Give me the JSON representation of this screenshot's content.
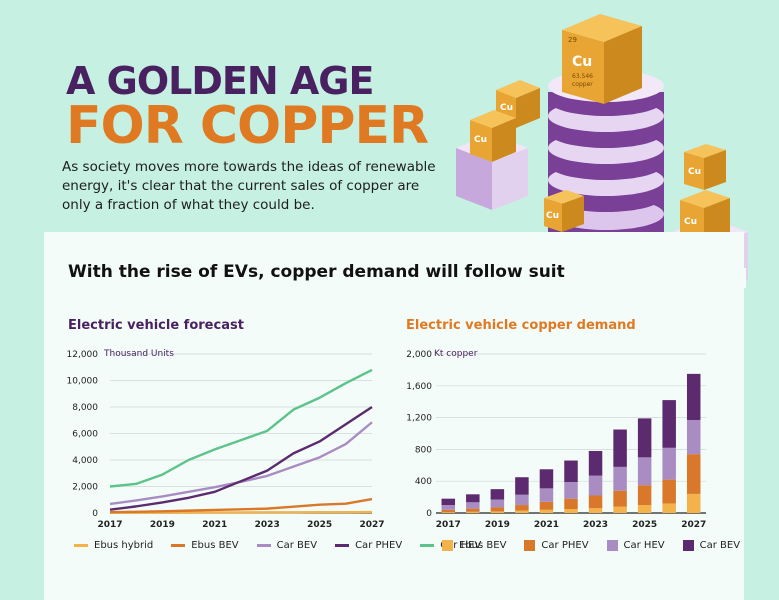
{
  "header": {
    "title_line1": "A GOLDEN AGE",
    "title_line2": "FOR COPPER",
    "intro": "As society moves more towards the ideas of renewable energy, it's clear that the current sales of copper are only a fraction of what they could be."
  },
  "decoration": {
    "cube_symbol": "Cu",
    "big_cube_number": "29",
    "big_cube_mass": "63.546",
    "big_cube_name": "copper"
  },
  "subtitle": "With the rise of EVs, copper demand will follow suit",
  "colors": {
    "ebus_hybrid": "#f4b24a",
    "ebus_bev": "#d9782a",
    "car_bev_line": "#a98cc2",
    "car_phev_line": "#5c2a6e",
    "car_hev_line": "#5cc48a",
    "bar_ebus_bev": "#f4b24a",
    "bar_car_phev": "#d9782a",
    "bar_car_hev": "#a98cc2",
    "bar_car_bev": "#5c2a6e"
  },
  "chart_data": [
    {
      "type": "line",
      "title": "Electric vehicle forecast",
      "ylabel": "Thousand Units",
      "x": [
        2017,
        2018,
        2019,
        2020,
        2021,
        2022,
        2023,
        2024,
        2025,
        2026,
        2027
      ],
      "xticks": [
        "2017",
        "2019",
        "2021",
        "2023",
        "2025",
        "2027"
      ],
      "yticks": [
        "0",
        "2,000",
        "4,000",
        "6,000",
        "8,000",
        "10,000",
        "12,000"
      ],
      "ylim": [
        0,
        12000
      ],
      "series": [
        {
          "name": "Ebus hybrid",
          "values": [
            20,
            25,
            30,
            35,
            40,
            45,
            50,
            55,
            60,
            65,
            70
          ]
        },
        {
          "name": "Ebus BEV",
          "values": [
            60,
            90,
            130,
            180,
            230,
            280,
            330,
            480,
            630,
            700,
            1050
          ]
        },
        {
          "name": "Car BEV",
          "values": [
            680,
            950,
            1250,
            1600,
            1950,
            2350,
            2800,
            3500,
            4200,
            5200,
            6850
          ]
        },
        {
          "name": "Car PHEV",
          "values": [
            250,
            500,
            800,
            1150,
            1600,
            2400,
            3200,
            4500,
            5400,
            6700,
            8000
          ]
        },
        {
          "name": "Car HEV",
          "values": [
            2000,
            2200,
            2900,
            4000,
            4800,
            5500,
            6200,
            7800,
            8700,
            9800,
            10800
          ]
        }
      ]
    },
    {
      "type": "bar",
      "title": "Electric vehicle copper demand",
      "ylabel": "Kt copper",
      "categories": [
        "2017",
        "2018",
        "2019",
        "2020",
        "2021",
        "2022",
        "2023",
        "2024",
        "2025",
        "2026",
        "2027"
      ],
      "xticks": [
        "2017",
        "2019",
        "2021",
        "2023",
        "2025",
        "2027"
      ],
      "yticks": [
        "0",
        "400",
        "800",
        "1,200",
        "1,600",
        "2,000"
      ],
      "ylim": [
        0,
        2000
      ],
      "stacked": true,
      "series": [
        {
          "name": "Ebus BEV",
          "values": [
            10,
            15,
            20,
            30,
            40,
            50,
            60,
            80,
            100,
            120,
            240
          ]
        },
        {
          "name": "Car PHEV",
          "values": [
            30,
            40,
            50,
            70,
            100,
            130,
            160,
            200,
            250,
            300,
            500
          ]
        },
        {
          "name": "Car HEV",
          "values": [
            60,
            80,
            100,
            130,
            170,
            210,
            250,
            300,
            350,
            400,
            430
          ]
        },
        {
          "name": "Car BEV",
          "values": [
            80,
            100,
            130,
            220,
            240,
            270,
            310,
            470,
            490,
            600,
            580
          ]
        }
      ]
    }
  ],
  "legends": {
    "line": [
      "Ebus hybrid",
      "Ebus BEV",
      "Car BEV",
      "Car PHEV",
      "Car HEV"
    ],
    "bar": [
      "Ebus BEV",
      "Car PHEV",
      "Car HEV",
      "Car BEV"
    ]
  }
}
